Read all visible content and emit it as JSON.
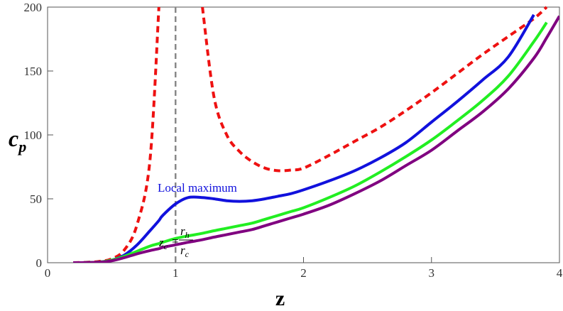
{
  "chart_data": {
    "type": "line",
    "x_label": "z",
    "y_label": "c",
    "y_label_sub": "p",
    "x": [
      0.2,
      0.3,
      0.4,
      0.5,
      0.6,
      0.7,
      0.8,
      0.87,
      0.9,
      1.0,
      1.1,
      1.21,
      1.3,
      1.4,
      1.5,
      1.6,
      1.7,
      1.8,
      1.9,
      2.0,
      2.2,
      2.4,
      2.6,
      2.8,
      3.0,
      3.2,
      3.4,
      3.6,
      3.8,
      3.9,
      4.0
    ],
    "series": [
      {
        "color": "#ee1111",
        "dashed": true,
        "values": [
          0,
          0.3,
          1,
          3,
          10,
          30,
          80,
          200,
          null,
          null,
          null,
          200,
          130,
          100,
          87,
          79,
          74,
          72,
          72.5,
          74,
          84,
          95,
          106,
          119,
          133,
          148,
          163,
          177,
          191,
          200,
          null
        ]
      },
      {
        "color": "#1111dd",
        "dashed": false,
        "values": [
          0,
          0.1,
          0.5,
          2,
          6,
          14,
          25,
          33,
          37,
          46,
          51,
          51,
          50,
          48.5,
          48,
          48.5,
          50,
          52,
          54,
          57,
          64,
          72,
          82,
          94,
          110,
          126,
          143,
          161,
          194,
          null,
          null
        ]
      },
      {
        "color": "#22ee22",
        "dashed": false,
        "values": [
          0,
          0.1,
          0.5,
          2,
          5,
          9,
          13,
          15,
          16,
          19,
          21,
          23,
          25,
          27,
          29,
          31,
          34,
          37,
          40,
          43,
          51,
          60,
          71,
          83,
          96,
          111,
          127,
          146,
          173,
          188,
          null
        ]
      },
      {
        "color": "#800080",
        "dashed": false,
        "values": [
          0,
          0.1,
          0.4,
          1.5,
          4,
          7,
          9.5,
          11,
          12,
          14,
          16,
          18,
          20,
          22,
          24,
          26,
          29,
          32,
          35,
          38,
          45,
          54,
          64,
          76,
          88,
          103,
          118,
          136,
          160,
          176,
          193
        ]
      }
    ],
    "vline_x": 1,
    "annotations": [
      "Local maximum"
    ],
    "formula": {
      "lhs": "z",
      "lhs_sub": "c",
      "eq": "=",
      "num": "r",
      "num_sub": "h",
      "den": "r",
      "den_sub": "c"
    },
    "xlim": [
      0,
      4
    ],
    "ylim": [
      0,
      200
    ],
    "xticks": [
      0,
      1,
      2,
      3,
      4
    ],
    "yticks": [
      0,
      50,
      100,
      150,
      200
    ]
  }
}
